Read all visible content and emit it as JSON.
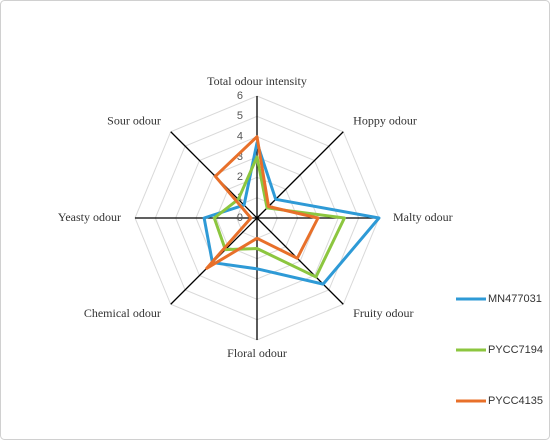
{
  "chart_data": {
    "type": "radar",
    "categories": [
      "Total odour intensity",
      "Hoppy odour",
      "Malty odour",
      "Fruity odour",
      "Floral odour",
      "Chemical odour",
      "Yeasty odour",
      "Sour odour"
    ],
    "series": [
      {
        "name": "MN477031",
        "color": "#2e9ad6",
        "values": [
          3.7,
          1.3,
          6,
          4.6,
          2.5,
          3.1,
          2.6,
          0.9
        ]
      },
      {
        "name": "PYCC7194",
        "color": "#8cc63f",
        "values": [
          3,
          0.7,
          4.3,
          4.1,
          1.5,
          2.2,
          2.1,
          1.3
        ]
      },
      {
        "name": "PYCC4135",
        "color": "#e8702a",
        "values": [
          4,
          0.8,
          3,
          2.8,
          1,
          3.5,
          0.3,
          2.9
        ]
      }
    ],
    "rlim": [
      0,
      6
    ],
    "rticks": [
      0,
      1,
      2,
      3,
      4,
      5,
      6
    ],
    "grid": true
  }
}
